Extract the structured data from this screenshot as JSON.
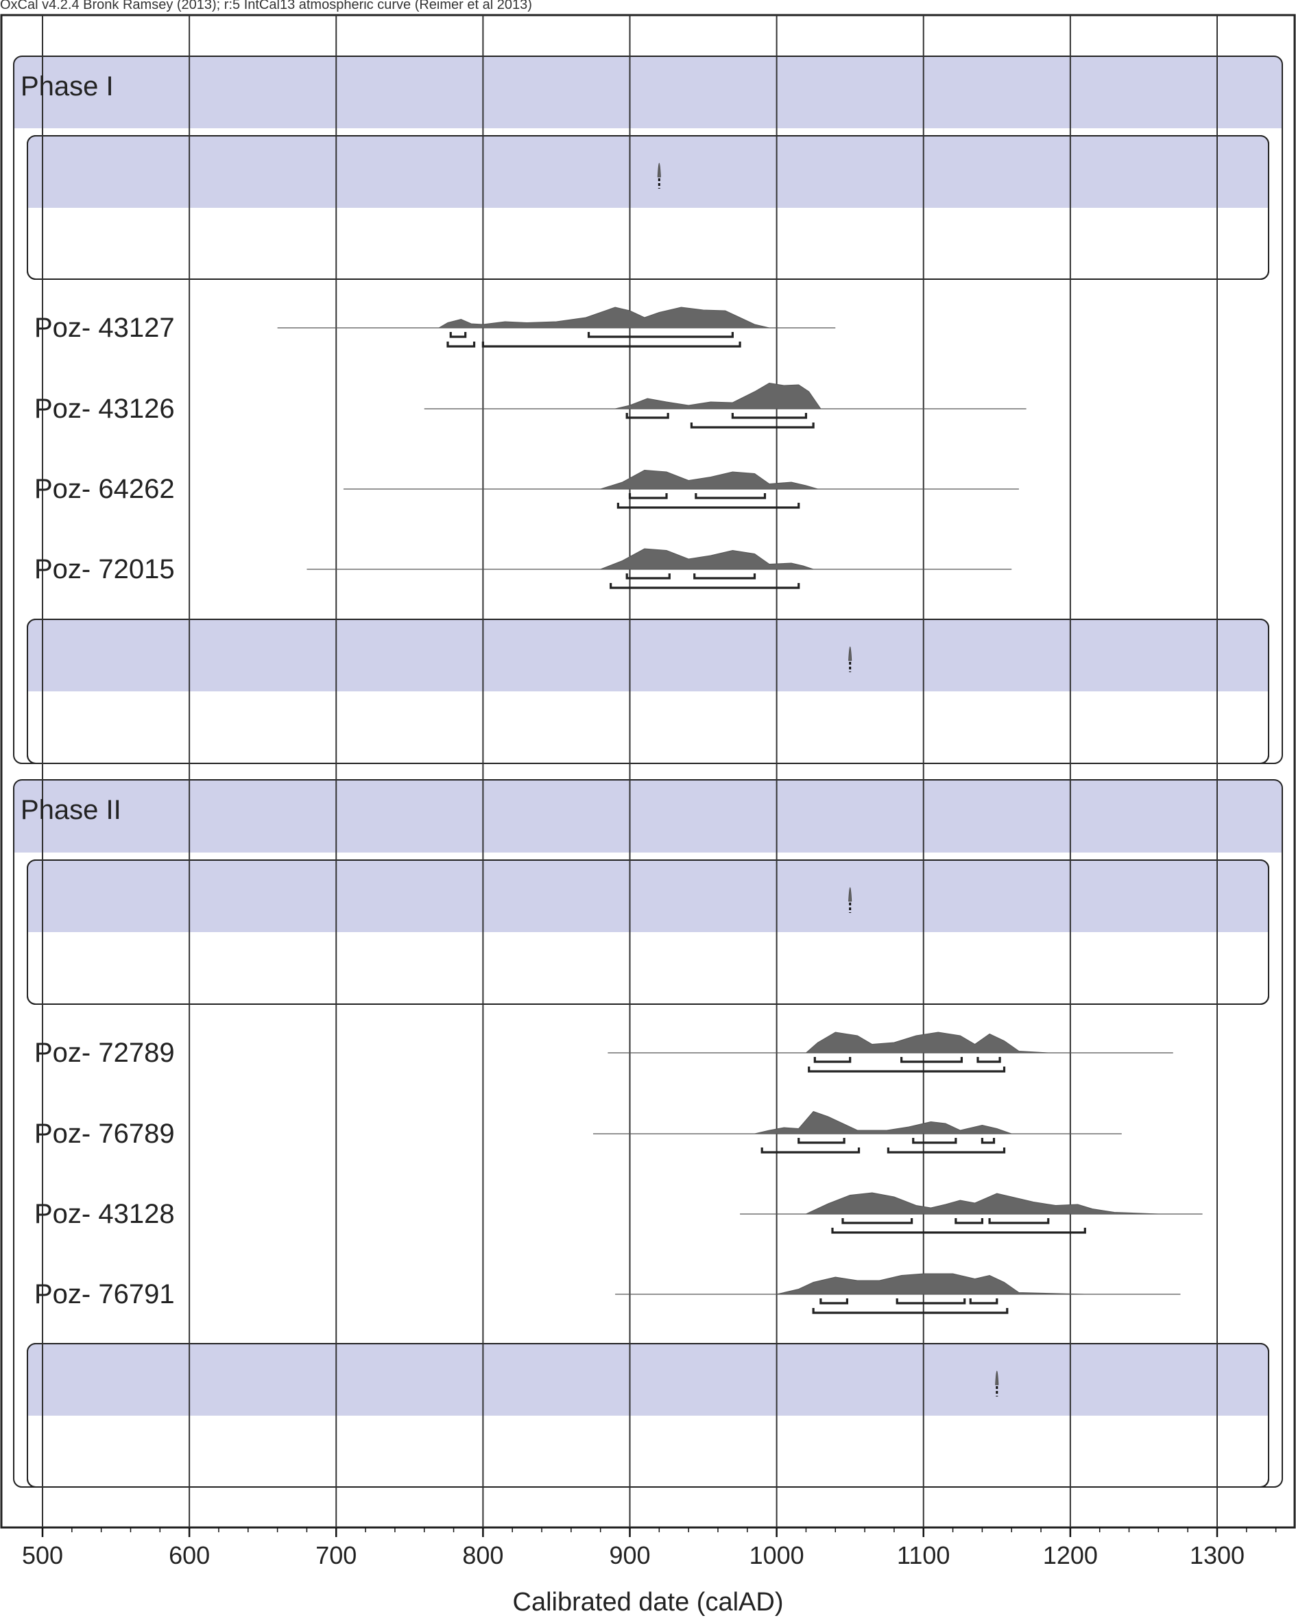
{
  "header": "OxCal v4.2.4 Bronk Ramsey (2013); r:5 IntCal13 atmospheric curve (Reimer et al 2013)",
  "chart_data": {
    "type": "multiplot",
    "xlabel": "Calibrated date (calAD)",
    "xlim": [
      478,
      1345
    ],
    "xticks": [
      500,
      600,
      700,
      800,
      900,
      1000,
      1100,
      1200,
      1300
    ],
    "grid": true,
    "phases": [
      {
        "name": "Phase I",
        "start_boundary": {
          "peak": 920
        },
        "samples": [
          {
            "label": "Poz- 43127",
            "range": [
              660,
              1040
            ],
            "profile": [
              [
                770,
                0
              ],
              [
                776,
                0.15
              ],
              [
                785,
                0.25
              ],
              [
                792,
                0.12
              ],
              [
                800,
                0.1
              ],
              [
                815,
                0.18
              ],
              [
                830,
                0.15
              ],
              [
                850,
                0.18
              ],
              [
                870,
                0.3
              ],
              [
                890,
                0.6
              ],
              [
                900,
                0.5
              ],
              [
                910,
                0.3
              ],
              [
                920,
                0.45
              ],
              [
                935,
                0.6
              ],
              [
                950,
                0.52
              ],
              [
                965,
                0.5
              ],
              [
                975,
                0.3
              ],
              [
                985,
                0.1
              ],
              [
                995,
                0
              ]
            ],
            "sigma1": [
              [
                778,
                788
              ],
              [
                872,
                970
              ]
            ],
            "sigma2": [
              [
                776,
                794
              ],
              [
                800,
                975
              ]
            ]
          },
          {
            "label": "Poz- 43126",
            "range": [
              760,
              1170
            ],
            "profile": [
              [
                890,
                0
              ],
              [
                900,
                0.1
              ],
              [
                912,
                0.3
              ],
              [
                925,
                0.2
              ],
              [
                940,
                0.1
              ],
              [
                955,
                0.2
              ],
              [
                970,
                0.18
              ],
              [
                985,
                0.5
              ],
              [
                995,
                0.75
              ],
              [
                1005,
                0.68
              ],
              [
                1015,
                0.7
              ],
              [
                1022,
                0.5
              ],
              [
                1030,
                0
              ]
            ],
            "sigma1": [
              [
                898,
                926
              ],
              [
                970,
                1020
              ]
            ],
            "sigma2": [
              [
                942,
                1025
              ]
            ]
          },
          {
            "label": "Poz- 64262",
            "range": [
              705,
              1165
            ],
            "profile": [
              [
                880,
                0
              ],
              [
                895,
                0.2
              ],
              [
                910,
                0.55
              ],
              [
                925,
                0.5
              ],
              [
                940,
                0.25
              ],
              [
                955,
                0.35
              ],
              [
                970,
                0.5
              ],
              [
                985,
                0.45
              ],
              [
                995,
                0.15
              ],
              [
                1010,
                0.2
              ],
              [
                1020,
                0.1
              ],
              [
                1028,
                0
              ]
            ],
            "sigma1": [
              [
                900,
                925
              ],
              [
                945,
                992
              ]
            ],
            "sigma2": [
              [
                892,
                1015
              ]
            ]
          },
          {
            "label": "Poz- 72015",
            "range": [
              680,
              1160
            ],
            "profile": [
              [
                880,
                0
              ],
              [
                895,
                0.25
              ],
              [
                910,
                0.6
              ],
              [
                925,
                0.55
              ],
              [
                940,
                0.3
              ],
              [
                955,
                0.4
              ],
              [
                970,
                0.55
              ],
              [
                985,
                0.45
              ],
              [
                995,
                0.15
              ],
              [
                1010,
                0.18
              ],
              [
                1018,
                0.1
              ],
              [
                1025,
                0
              ]
            ],
            "sigma1": [
              [
                898,
                927
              ],
              [
                944,
                985
              ]
            ],
            "sigma2": [
              [
                887,
                1015
              ]
            ]
          }
        ],
        "end_boundary": {
          "peak": 1050
        }
      },
      {
        "name": "Phase II",
        "start_boundary": {
          "peak": 1050
        },
        "samples": [
          {
            "label": "Poz- 72789",
            "range": [
              885,
              1270
            ],
            "profile": [
              [
                1020,
                0
              ],
              [
                1028,
                0.3
              ],
              [
                1040,
                0.6
              ],
              [
                1055,
                0.5
              ],
              [
                1065,
                0.25
              ],
              [
                1080,
                0.3
              ],
              [
                1095,
                0.5
              ],
              [
                1110,
                0.6
              ],
              [
                1125,
                0.5
              ],
              [
                1135,
                0.25
              ],
              [
                1145,
                0.55
              ],
              [
                1155,
                0.35
              ],
              [
                1165,
                0.05
              ],
              [
                1185,
                0
              ]
            ],
            "sigma1": [
              [
                1026,
                1050
              ],
              [
                1085,
                1126
              ],
              [
                1137,
                1152
              ]
            ],
            "sigma2": [
              [
                1022,
                1155
              ]
            ]
          },
          {
            "label": "Poz- 76789",
            "range": [
              875,
              1235
            ],
            "profile": [
              [
                985,
                0
              ],
              [
                995,
                0.1
              ],
              [
                1005,
                0.18
              ],
              [
                1015,
                0.15
              ],
              [
                1025,
                0.65
              ],
              [
                1035,
                0.5
              ],
              [
                1045,
                0.3
              ],
              [
                1055,
                0.1
              ],
              [
                1075,
                0.1
              ],
              [
                1090,
                0.2
              ],
              [
                1105,
                0.35
              ],
              [
                1115,
                0.3
              ],
              [
                1125,
                0.1
              ],
              [
                1140,
                0.25
              ],
              [
                1150,
                0.15
              ],
              [
                1160,
                0
              ]
            ],
            "sigma1": [
              [
                1015,
                1046
              ],
              [
                1093,
                1122
              ],
              [
                1140,
                1148
              ]
            ],
            "sigma2": [
              [
                990,
                1056
              ],
              [
                1076,
                1155
              ]
            ]
          },
          {
            "label": "Poz- 43128",
            "range": [
              975,
              1290
            ],
            "profile": [
              [
                1020,
                0
              ],
              [
                1035,
                0.3
              ],
              [
                1050,
                0.55
              ],
              [
                1065,
                0.62
              ],
              [
                1080,
                0.5
              ],
              [
                1095,
                0.25
              ],
              [
                1105,
                0.18
              ],
              [
                1115,
                0.28
              ],
              [
                1125,
                0.4
              ],
              [
                1135,
                0.32
              ],
              [
                1150,
                0.6
              ],
              [
                1160,
                0.5
              ],
              [
                1175,
                0.35
              ],
              [
                1190,
                0.25
              ],
              [
                1205,
                0.28
              ],
              [
                1215,
                0.15
              ],
              [
                1230,
                0.05
              ],
              [
                1260,
                0
              ]
            ],
            "sigma1": [
              [
                1045,
                1092
              ],
              [
                1122,
                1140
              ],
              [
                1145,
                1185
              ]
            ],
            "sigma2": [
              [
                1038,
                1210
              ]
            ]
          },
          {
            "label": "Poz- 76791",
            "range": [
              890,
              1275
            ],
            "profile": [
              [
                1000,
                0
              ],
              [
                1015,
                0.15
              ],
              [
                1025,
                0.35
              ],
              [
                1040,
                0.5
              ],
              [
                1055,
                0.4
              ],
              [
                1070,
                0.4
              ],
              [
                1085,
                0.55
              ],
              [
                1100,
                0.6
              ],
              [
                1120,
                0.6
              ],
              [
                1135,
                0.45
              ],
              [
                1145,
                0.55
              ],
              [
                1155,
                0.35
              ],
              [
                1165,
                0.05
              ],
              [
                1210,
                0
              ]
            ],
            "sigma1": [
              [
                1030,
                1048
              ],
              [
                1082,
                1128
              ],
              [
                1132,
                1150
              ]
            ],
            "sigma2": [
              [
                1025,
                1157
              ]
            ]
          }
        ],
        "end_boundary": {
          "peak": 1150
        }
      }
    ]
  }
}
